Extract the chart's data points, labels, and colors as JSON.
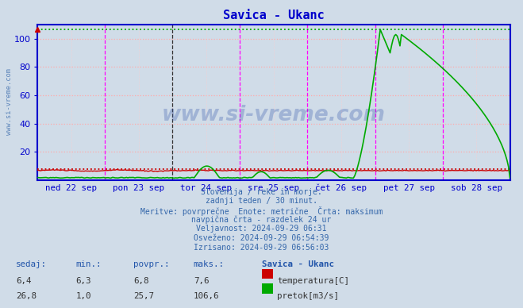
{
  "title": "Savica - Ukanc",
  "title_color": "#0000cc",
  "bg_color": "#d0dce8",
  "plot_bg_color": "#d0dce8",
  "ylim": [
    0,
    110
  ],
  "yticks": [
    20,
    40,
    60,
    80,
    100
  ],
  "xlabel_days": [
    "ned 22 sep",
    "pon 23 sep",
    "tor 24 sep",
    "sre 25 sep",
    "čet 26 sep",
    "pet 27 sep",
    "sob 28 sep"
  ],
  "temp_color": "#cc0000",
  "flow_color": "#00aa00",
  "axis_color": "#0000cc",
  "grid_h_color": "#ffaaaa",
  "grid_v_color": "#ffcccc",
  "vline_color": "#ff00ff",
  "vline_black": "#333333",
  "max_temp": 7.6,
  "max_flow": 106.6,
  "info_lines": [
    "Slovenija / reke in morje.",
    "zadnji teden / 30 minut.",
    "Meritve: povrprečne  Enote: metrične  Črta: maksimum",
    "navpična črta - razdelek 24 ur",
    "Veljavnost: 2024-09-29 06:31",
    "Osveženo: 2024-09-29 06:54:39",
    "Izrisano: 2024-09-29 06:56:03"
  ],
  "table_header": [
    "sedaj:",
    "min.:",
    "povpr.:",
    "maks.:",
    "Savica - Ukanc"
  ],
  "table_row1": [
    "6,4",
    "6,3",
    "6,8",
    "7,6",
    "temperatura[C]"
  ],
  "table_row2": [
    "26,8",
    "1,0",
    "25,7",
    "106,6",
    "pretok[m3/s]"
  ],
  "watermark": "www.si-vreme.com"
}
